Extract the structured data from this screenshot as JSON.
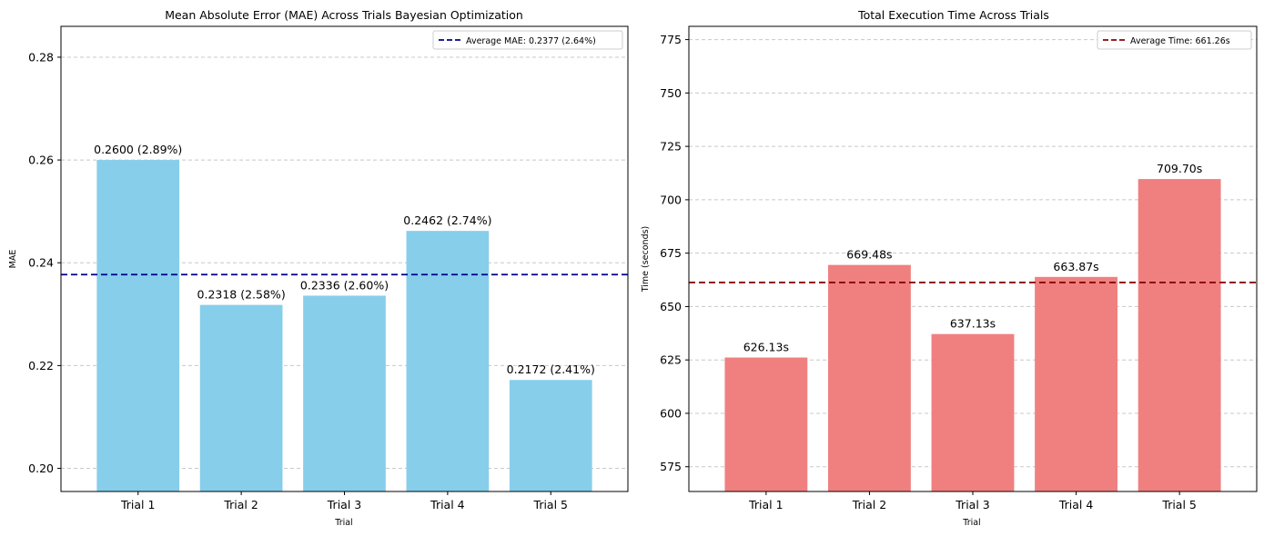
{
  "chart_data": [
    {
      "type": "bar",
      "title": "Mean Absolute Error (MAE) Across Trials Bayesian Optimization",
      "xlabel": "Trial",
      "ylabel": "MAE",
      "categories": [
        "Trial 1",
        "Trial 2",
        "Trial 3",
        "Trial 4",
        "Trial 5"
      ],
      "values": [
        0.26,
        0.2318,
        0.2336,
        0.2462,
        0.2172
      ],
      "data_labels": [
        "0.2600 (2.89%)",
        "0.2318 (2.58%)",
        "0.2336 (2.60%)",
        "0.2462 (2.74%)",
        "0.2172 (2.41%)"
      ],
      "ylim": [
        0.1955,
        0.286
      ],
      "yticks": [
        0.2,
        0.22,
        0.24,
        0.26,
        0.28
      ],
      "ytick_labels": [
        "0.20",
        "0.22",
        "0.24",
        "0.26",
        "0.28"
      ],
      "reference_line": {
        "value": 0.2377,
        "label": "Average MAE: 0.2377 (2.64%)",
        "style": "dashed",
        "color": "#00008b"
      },
      "bar_color": "#87ceeb",
      "grid": "y",
      "legend_position": "top-right"
    },
    {
      "type": "bar",
      "title": "Total Execution Time Across Trials",
      "xlabel": "Trial",
      "ylabel": "Time (seconds)",
      "categories": [
        "Trial 1",
        "Trial 2",
        "Trial 3",
        "Trial 4",
        "Trial 5"
      ],
      "values": [
        626.13,
        669.48,
        637.13,
        663.87,
        709.7
      ],
      "data_labels": [
        "626.13s",
        "669.48s",
        "637.13s",
        "663.87s",
        "709.70s"
      ],
      "ylim": [
        563.4,
        781.2
      ],
      "yticks": [
        575,
        600,
        625,
        650,
        675,
        700,
        725,
        750,
        775
      ],
      "ytick_labels": [
        "575",
        "600",
        "625",
        "650",
        "675",
        "700",
        "725",
        "750",
        "775"
      ],
      "reference_line": {
        "value": 661.26,
        "label": "Average Time: 661.26s",
        "style": "dashed",
        "color": "#8b0000"
      },
      "bar_color": "#f08080",
      "grid": "y",
      "legend_position": "top-right"
    }
  ]
}
